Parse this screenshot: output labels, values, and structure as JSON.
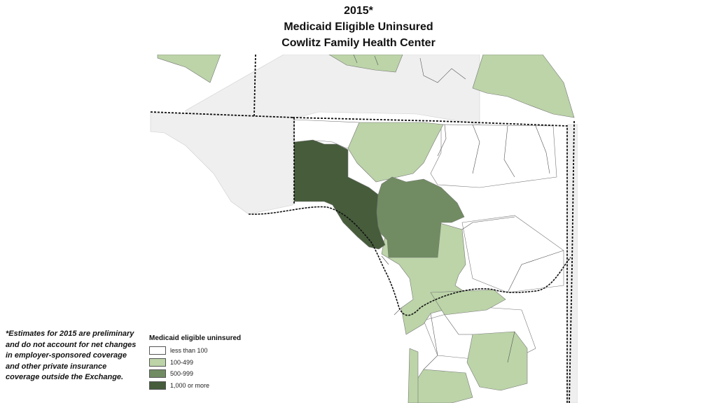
{
  "title": {
    "year": "2015*",
    "line2": "Medicaid Eligible Uninsured",
    "line3": "Cowlitz Family Health Center"
  },
  "footnote": "*Estimates for 2015 are preliminary and do not account for net changes in employer-sponsored coverage and other private insurance coverage outside the Exchange.",
  "legend": {
    "title": "Medicaid eligible uninsured",
    "items": [
      {
        "label": "less than 100",
        "color": "#ffffff"
      },
      {
        "label": "100-499",
        "color": "#bcd4a8"
      },
      {
        "label": "500-999",
        "color": "#718c62"
      },
      {
        "label": "1,000 or more",
        "color": "#465c3b"
      }
    ]
  },
  "map": {
    "outside_area_color": "#efefef",
    "boundary_color": "#111111"
  }
}
